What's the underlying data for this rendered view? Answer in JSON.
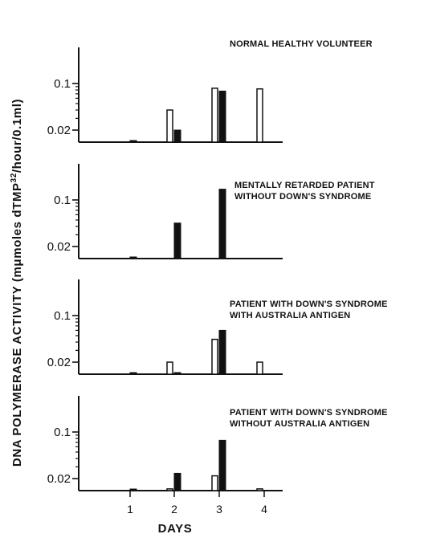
{
  "chart_data": {
    "type": "bar",
    "ylabel": "DNA POLYMERASE ACTIVITY (mμmoles dTMP",
    "ylabel_sup": "32",
    "ylabel_tail": "/hour/0.1ml)",
    "xlabel": "DAYS",
    "categories": [
      "1",
      "2",
      "3",
      "4"
    ],
    "y_ticks": [
      "0.1",
      "0.02"
    ],
    "legend": "none",
    "grid": false,
    "panels": [
      {
        "title": [
          "NORMAL HEALTHY VOLUNTEER"
        ],
        "open_bars": [
          null,
          0.04,
          0.085,
          0.083
        ],
        "filled_bars": [
          0.003,
          0.02,
          0.077,
          null
        ]
      },
      {
        "title": [
          "MENTALLY RETARDED PATIENT",
          "WITHOUT DOWN'S SYNDROME"
        ],
        "open_bars": [
          null,
          null,
          null,
          null
        ],
        "filled_bars": [
          0.013,
          0.045,
          0.145,
          null
        ]
      },
      {
        "title": [
          "PATIENT WITH DOWN'S SYNDROME",
          "WITH AUSTRALIA ANTIGEN"
        ],
        "open_bars": [
          null,
          0.02,
          0.044,
          0.02
        ],
        "filled_bars": [
          0.002,
          0.012,
          0.06,
          null
        ]
      },
      {
        "title": [
          "PATIENT WITH DOWN'S SYNDROME",
          "WITHOUT AUSTRALIA ANTIGEN"
        ],
        "open_bars": [
          null,
          0.014,
          0.022,
          0.014
        ],
        "filled_bars": [
          0.003,
          0.024,
          0.075,
          null
        ]
      }
    ]
  }
}
